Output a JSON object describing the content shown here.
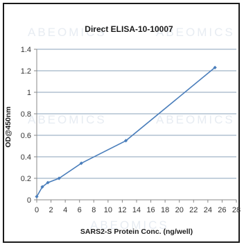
{
  "chart_data": {
    "type": "line",
    "title": "Direct ELISA-10-10007",
    "xlabel": "SARS2-S Protein Conc. (ng/well)",
    "ylabel": "OD@450nm",
    "xlim": [
      0,
      28
    ],
    "ylim": [
      0,
      1.4
    ],
    "x_ticks": [
      0,
      2,
      4,
      6,
      8,
      10,
      12,
      14,
      16,
      18,
      20,
      22,
      24,
      26,
      28
    ],
    "y_ticks": [
      0,
      0.2,
      0.4,
      0.6,
      0.8,
      1,
      1.2,
      1.4
    ],
    "x_tick_labels": [
      "0",
      "2",
      "4",
      "6",
      "8",
      "10",
      "12",
      "14",
      "16",
      "18",
      "20",
      "22",
      "24",
      "26",
      "28"
    ],
    "y_tick_labels": [
      "0",
      "0.2",
      "0.4",
      "0.6",
      "0.8",
      "1",
      "1.2",
      "1.4"
    ],
    "grid": "horizontal",
    "legend": "none",
    "series": [
      {
        "x": [
          0,
          0.78,
          1.56,
          3.13,
          6.25,
          12.5,
          25
        ],
        "y": [
          0.03,
          0.12,
          0.16,
          0.2,
          0.34,
          0.55,
          1.23
        ],
        "color": "#4a7ebb"
      }
    ],
    "watermark": "ABEOMICS"
  }
}
